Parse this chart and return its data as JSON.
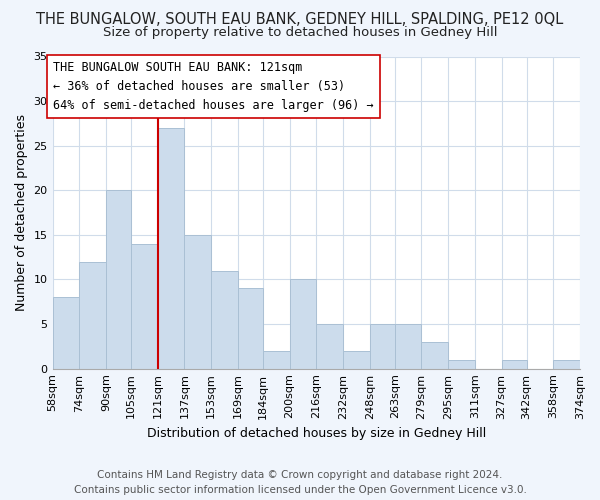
{
  "title": "THE BUNGALOW, SOUTH EAU BANK, GEDNEY HILL, SPALDING, PE12 0QL",
  "subtitle": "Size of property relative to detached houses in Gedney Hill",
  "xlabel": "Distribution of detached houses by size in Gedney Hill",
  "ylabel": "Number of detached properties",
  "bar_color": "#ccdcec",
  "bar_edge_color": "#aac0d4",
  "vline_x": 121,
  "vline_color": "#cc0000",
  "bins": [
    58,
    74,
    90,
    105,
    121,
    137,
    153,
    169,
    184,
    200,
    216,
    232,
    248,
    263,
    279,
    295,
    311,
    327,
    342,
    358,
    374
  ],
  "heights": [
    8,
    12,
    20,
    14,
    27,
    15,
    11,
    9,
    2,
    10,
    5,
    2,
    5,
    5,
    3,
    1,
    0,
    1,
    0,
    1
  ],
  "tick_labels": [
    "58sqm",
    "74sqm",
    "90sqm",
    "105sqm",
    "121sqm",
    "137sqm",
    "153sqm",
    "169sqm",
    "184sqm",
    "200sqm",
    "216sqm",
    "232sqm",
    "248sqm",
    "263sqm",
    "279sqm",
    "295sqm",
    "311sqm",
    "327sqm",
    "342sqm",
    "358sqm",
    "374sqm"
  ],
  "annotation_title": "THE BUNGALOW SOUTH EAU BANK: 121sqm",
  "annotation_line1": "← 36% of detached houses are smaller (53)",
  "annotation_line2": "64% of semi-detached houses are larger (96) →",
  "footer1": "Contains HM Land Registry data © Crown copyright and database right 2024.",
  "footer2": "Contains public sector information licensed under the Open Government Licence v3.0.",
  "ylim": [
    0,
    35
  ],
  "yticks": [
    0,
    5,
    10,
    15,
    20,
    25,
    30,
    35
  ],
  "plot_bg_color": "#ffffff",
  "fig_bg_color": "#f0f5fc",
  "grid_color": "#d0dcea",
  "ann_border_color": "#cc0000",
  "title_fontsize": 10.5,
  "subtitle_fontsize": 9.5,
  "axis_label_fontsize": 9,
  "tick_fontsize": 8,
  "annotation_fontsize": 8.5,
  "footer_fontsize": 7.5
}
